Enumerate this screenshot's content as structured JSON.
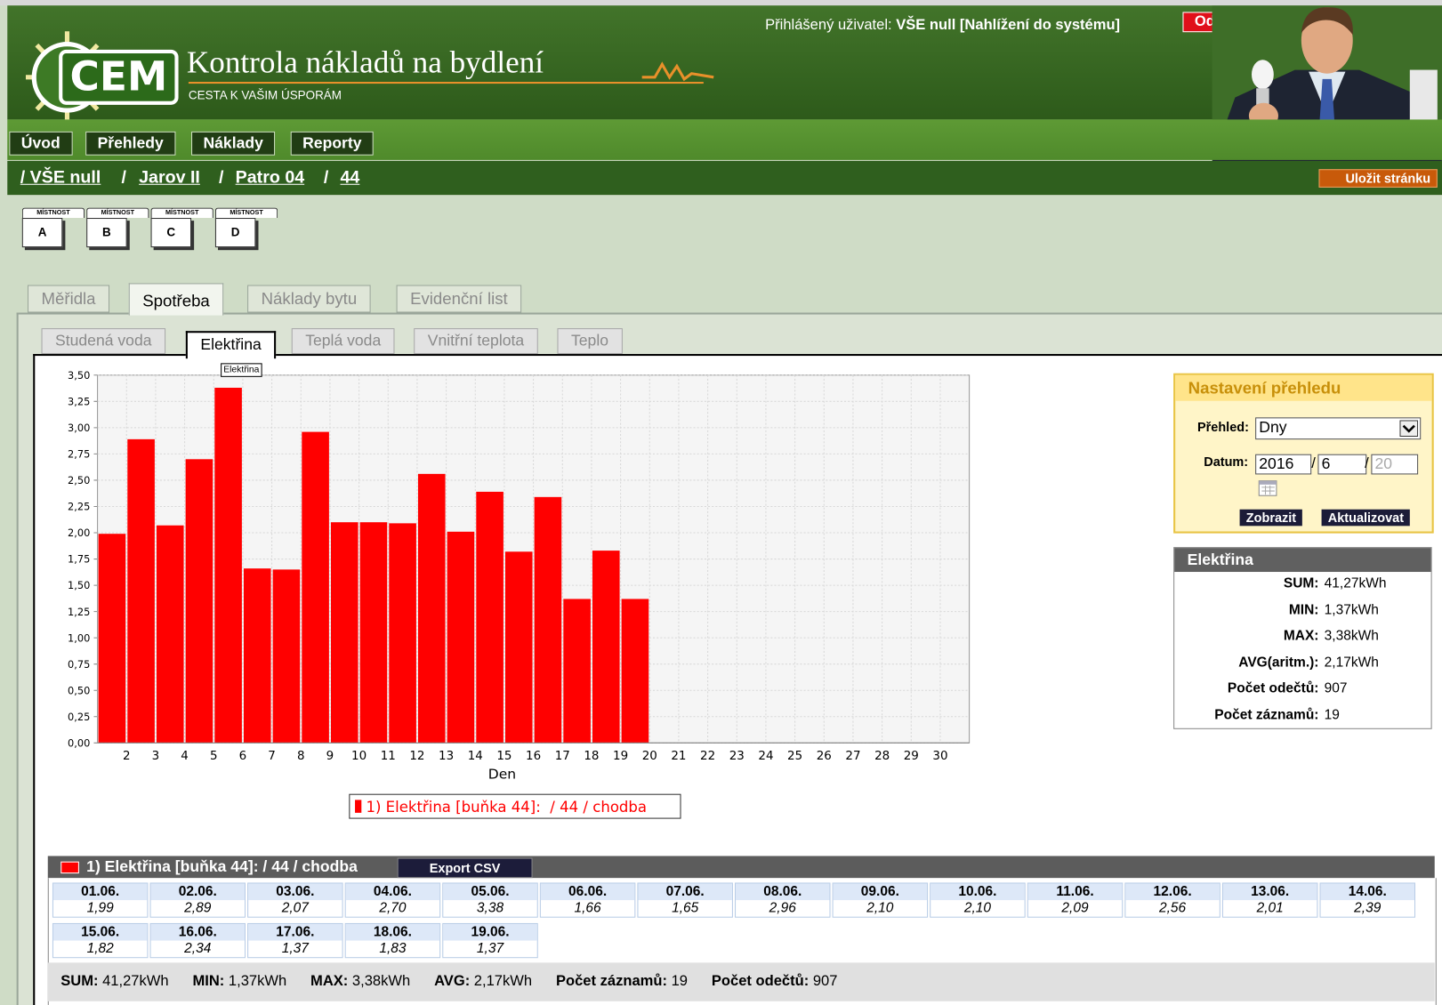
{
  "header": {
    "logo": "CEM",
    "title": "Kontrola nákladů na bydlení",
    "subtitle": "CESTA K VAŠIM ÚSPORÁM",
    "user_label": "Přihlášený uživatel:",
    "user_name": "VŠE null [Nahlížení do systému]",
    "logout": "Odhlásit"
  },
  "nav": [
    "Úvod",
    "Přehledy",
    "Náklady",
    "Reporty"
  ],
  "breadcrumb": [
    "/ VŠE null",
    "Jarov II",
    "Patro 04",
    "44"
  ],
  "breadcrumb_separator": "/",
  "save_button": "Uložit stránku",
  "rooms": {
    "label": "MÍSTNOST",
    "items": [
      "A",
      "B",
      "C",
      "D"
    ]
  },
  "tabs": [
    "Měřidla",
    "Spotřeba",
    "Náklady bytu",
    "Evidenční list"
  ],
  "subtabs": [
    "Studená voda",
    "Elektřina",
    "Teplá voda",
    "Vnitřní teplota",
    "Teplo"
  ],
  "tooltip": "Elektřina",
  "chart_data": {
    "type": "bar",
    "color": "#ff0000",
    "x_label": "Den",
    "legend": "1) Elektřina [buňka 44]:  / 44 / chodba",
    "categories": [
      null,
      "2",
      "3",
      "4",
      "5",
      "6",
      "7",
      "8",
      "9",
      "10",
      "11",
      "12",
      "13",
      "14",
      "15",
      "16",
      "17",
      "18",
      "19",
      "20",
      "21",
      "22",
      "23",
      "24",
      "25",
      "26",
      "27",
      "28",
      "29",
      "30"
    ],
    "values": [
      1.99,
      2.89,
      2.07,
      2.7,
      3.38,
      1.66,
      1.65,
      2.96,
      2.1,
      2.1,
      2.09,
      2.56,
      2.01,
      2.39,
      1.82,
      2.34,
      1.37,
      1.83,
      1.37,
      null,
      null,
      null,
      null,
      null,
      null,
      null,
      null,
      null,
      null,
      null
    ],
    "ylim": [
      0,
      3.5
    ],
    "yticks": [
      {
        "value": 0,
        "label": "0,00"
      },
      {
        "value": 0.25,
        "label": "0,25"
      },
      {
        "value": 0.5,
        "label": "0,50"
      },
      {
        "value": 0.75,
        "label": "0,75"
      },
      {
        "value": 1,
        "label": "1,00"
      },
      {
        "value": 1.25,
        "label": "1,25"
      },
      {
        "value": 1.5,
        "label": "1,50"
      },
      {
        "value": 1.75,
        "label": "1,75"
      },
      {
        "value": 2,
        "label": "2,00"
      },
      {
        "value": 2.25,
        "label": "2,25"
      },
      {
        "value": 2.5,
        "label": "2,50"
      },
      {
        "value": 2.75,
        "label": "2,75"
      },
      {
        "value": 3,
        "label": "3,00"
      },
      {
        "value": 3.25,
        "label": "3,25"
      },
      {
        "value": 3.5,
        "label": "3,50"
      }
    ],
    "grid": true
  },
  "settings": {
    "title": "Nastavení přehledu",
    "overview_label": "Přehled:",
    "overview_value": "Dny",
    "date_label": "Datum:",
    "year": "2016",
    "month": "6",
    "day": "20",
    "date_separator": "/",
    "buttons": [
      "Zobrazit",
      "Aktualizovat"
    ]
  },
  "stats": {
    "title": "Elektřina",
    "rows": [
      [
        "SUM:",
        "41,27kWh"
      ],
      [
        "MIN:",
        "1,37kWh"
      ],
      [
        "MAX:",
        "3,38kWh"
      ],
      [
        "AVG(aritm.):",
        "2,17kWh"
      ],
      [
        "Počet odečtů:",
        "907"
      ],
      [
        "Počet záznamů:",
        "19"
      ]
    ]
  },
  "table": {
    "title": "1) Elektřina [buňka 44]: / 44 / chodba",
    "export": "Export CSV",
    "cells": [
      [
        "01.06.",
        "1,99"
      ],
      [
        "02.06.",
        "2,89"
      ],
      [
        "03.06.",
        "2,07"
      ],
      [
        "04.06.",
        "2,70"
      ],
      [
        "05.06.",
        "3,38"
      ],
      [
        "06.06.",
        "1,66"
      ],
      [
        "07.06.",
        "1,65"
      ],
      [
        "08.06.",
        "2,96"
      ],
      [
        "09.06.",
        "2,10"
      ],
      [
        "10.06.",
        "2,10"
      ],
      [
        "11.06.",
        "2,09"
      ],
      [
        "12.06.",
        "2,56"
      ],
      [
        "13.06.",
        "2,01"
      ],
      [
        "14.06.",
        "2,39"
      ],
      [
        "15.06.",
        "1,82"
      ],
      [
        "16.06.",
        "2,34"
      ],
      [
        "17.06.",
        "1,37"
      ],
      [
        "18.06.",
        "1,83"
      ],
      [
        "19.06.",
        "1,37"
      ]
    ]
  },
  "footer": [
    [
      "SUM:",
      "41,27kWh"
    ],
    [
      "MIN:",
      "1,37kWh"
    ],
    [
      "MAX:",
      "3,38kWh"
    ],
    [
      "AVG:",
      "2,17kWh"
    ],
    [
      "Počet záznamů:",
      "19"
    ],
    [
      "Počet odečtů:",
      "907"
    ]
  ]
}
